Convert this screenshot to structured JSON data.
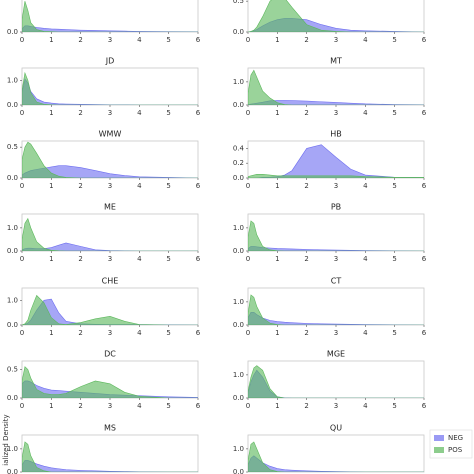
{
  "chart_data": [
    {
      "type": "area",
      "x": [
        0,
        0.1,
        0.2,
        0.3,
        0.5,
        0.75,
        1,
        1.25,
        1.5,
        2,
        2.5,
        3,
        3.5,
        4,
        5,
        6
      ],
      "xlim": [
        0,
        6
      ],
      "xticks": [
        0,
        1,
        2,
        3,
        4,
        5,
        6
      ],
      "ylim": [
        0,
        1.2
      ],
      "yticks": [
        {
          "value": 0,
          "label": "0.0"
        }
      ],
      "series": [
        {
          "name": "NEG",
          "color": "#6f6ff0",
          "values": [
            0.1,
            0.2,
            0.2,
            0.18,
            0.15,
            0.12,
            0.1,
            0.09,
            0.08,
            0.06,
            0.05,
            0.04,
            0.03,
            0.02,
            0.01,
            0.005
          ]
        },
        {
          "name": "POS",
          "color": "#5cb85c",
          "values": [
            0.4,
            1.0,
            0.7,
            0.3,
            0.08,
            0.02,
            0.01,
            0,
            0,
            0,
            0,
            0,
            0,
            0,
            0,
            0
          ]
        }
      ]
    },
    {
      "type": "area",
      "x": [
        0,
        0.1,
        0.2,
        0.3,
        0.5,
        0.75,
        1,
        1.25,
        1.5,
        2,
        2.5,
        3,
        3.5,
        4,
        5,
        6
      ],
      "xlim": [
        0,
        6
      ],
      "xticks": [
        0,
        1,
        2,
        3,
        4,
        5,
        6
      ],
      "ylim": [
        0,
        0.6
      ],
      "yticks": [
        {
          "value": 0,
          "label": "0.0"
        },
        {
          "value": 0.5,
          "label": "0.5"
        }
      ],
      "series": [
        {
          "name": "NEG",
          "color": "#6f6ff0",
          "values": [
            0,
            0.01,
            0.02,
            0.04,
            0.1,
            0.16,
            0.2,
            0.22,
            0.22,
            0.2,
            0.12,
            0.06,
            0.03,
            0.02,
            0.01,
            0
          ]
        },
        {
          "name": "POS",
          "color": "#5cb85c",
          "values": [
            0,
            0.01,
            0.03,
            0.08,
            0.25,
            0.5,
            0.6,
            0.55,
            0.4,
            0.12,
            0.03,
            0.01,
            0,
            0,
            0,
            0
          ]
        }
      ]
    },
    {
      "type": "area",
      "title": "JD",
      "x": [
        0,
        0.1,
        0.2,
        0.3,
        0.5,
        0.75,
        1,
        1.25,
        1.5,
        2,
        2.5,
        3,
        3.5,
        4,
        5,
        6
      ],
      "xlim": [
        0,
        6
      ],
      "xticks": [
        0,
        1,
        2,
        3,
        4,
        5,
        6
      ],
      "ylim": [
        0,
        1.5
      ],
      "yticks": [
        {
          "value": 0,
          "label": "0.0"
        },
        {
          "value": 1,
          "label": "1.0"
        }
      ],
      "series": [
        {
          "name": "NEG",
          "color": "#6f6ff0",
          "values": [
            0.5,
            1.05,
            0.9,
            0.55,
            0.25,
            0.12,
            0.08,
            0.05,
            0.04,
            0.03,
            0.02,
            0.01,
            0.01,
            0,
            0,
            0
          ]
        },
        {
          "name": "POS",
          "color": "#5cb85c",
          "values": [
            0.6,
            1.3,
            1.0,
            0.5,
            0.12,
            0.03,
            0.01,
            0,
            0,
            0,
            0,
            0,
            0,
            0,
            0,
            0
          ]
        }
      ]
    },
    {
      "type": "area",
      "title": "MT",
      "x": [
        0,
        0.1,
        0.2,
        0.3,
        0.5,
        0.75,
        1,
        1.25,
        1.5,
        2,
        2.5,
        3,
        3.5,
        4,
        5,
        6
      ],
      "xlim": [
        0,
        6
      ],
      "xticks": [
        0,
        1,
        2,
        3,
        4,
        5,
        6
      ],
      "ylim": [
        0,
        1.6
      ],
      "yticks": [
        {
          "value": 0,
          "label": "0.0"
        },
        {
          "value": 1,
          "label": "1.0"
        }
      ],
      "series": [
        {
          "name": "NEG",
          "color": "#6f6ff0",
          "values": [
            0.02,
            0.04,
            0.06,
            0.08,
            0.12,
            0.18,
            0.2,
            0.2,
            0.19,
            0.17,
            0.14,
            0.11,
            0.08,
            0.05,
            0.02,
            0.01
          ]
        },
        {
          "name": "POS",
          "color": "#5cb85c",
          "values": [
            0.5,
            1.3,
            1.5,
            1.2,
            0.6,
            0.3,
            0.1,
            0.02,
            0,
            0,
            0,
            0,
            0,
            0,
            0,
            0
          ]
        }
      ]
    },
    {
      "type": "area",
      "title": "WMW",
      "x": [
        0,
        0.1,
        0.2,
        0.3,
        0.5,
        0.75,
        1,
        1.25,
        1.5,
        2,
        2.5,
        3,
        3.5,
        4,
        5,
        6
      ],
      "xlim": [
        0,
        6
      ],
      "xticks": [
        0,
        1,
        2,
        3,
        4,
        5,
        6
      ],
      "ylim": [
        0,
        0.6
      ],
      "yticks": [
        {
          "value": 0,
          "label": "0.0"
        },
        {
          "value": 0.5,
          "label": "0.5"
        }
      ],
      "series": [
        {
          "name": "NEG",
          "color": "#6f6ff0",
          "values": [
            0.05,
            0.08,
            0.1,
            0.12,
            0.14,
            0.16,
            0.18,
            0.2,
            0.2,
            0.17,
            0.12,
            0.07,
            0.04,
            0.02,
            0.01,
            0
          ]
        },
        {
          "name": "POS",
          "color": "#5cb85c",
          "values": [
            0.3,
            0.5,
            0.58,
            0.55,
            0.4,
            0.2,
            0.08,
            0.03,
            0.01,
            0,
            0,
            0,
            0,
            0,
            0,
            0
          ]
        }
      ]
    },
    {
      "type": "area",
      "title": "HB",
      "x": [
        0,
        0.1,
        0.2,
        0.3,
        0.5,
        0.75,
        1,
        1.25,
        1.5,
        2,
        2.5,
        3,
        3.5,
        4,
        5,
        6
      ],
      "xlim": [
        0,
        6
      ],
      "xticks": [
        0,
        1,
        2,
        3,
        4,
        5,
        6
      ],
      "ylim": [
        0,
        0.5
      ],
      "yticks": [
        {
          "value": 0,
          "label": "0.0"
        },
        {
          "value": 0.2,
          "label": "0.2"
        },
        {
          "value": 0.4,
          "label": "0.4"
        }
      ],
      "series": [
        {
          "name": "NEG",
          "color": "#6f6ff0",
          "values": [
            0,
            0,
            0,
            0,
            0.01,
            0.01,
            0.02,
            0.04,
            0.1,
            0.4,
            0.45,
            0.28,
            0.12,
            0.04,
            0.01,
            0
          ]
        },
        {
          "name": "POS",
          "color": "#5cb85c",
          "values": [
            0.02,
            0.03,
            0.04,
            0.05,
            0.05,
            0.04,
            0.03,
            0.03,
            0.03,
            0.03,
            0.03,
            0.03,
            0.03,
            0.02,
            0.01,
            0.01
          ]
        }
      ]
    },
    {
      "type": "area",
      "title": "ME",
      "x": [
        0,
        0.1,
        0.2,
        0.3,
        0.5,
        0.75,
        1,
        1.25,
        1.5,
        2,
        2.5,
        3,
        3.5,
        4,
        5,
        6
      ],
      "xlim": [
        0,
        6
      ],
      "xticks": [
        0,
        1,
        2,
        3,
        4,
        5,
        6
      ],
      "ylim": [
        0,
        1.6
      ],
      "yticks": [
        {
          "value": 0,
          "label": "0.0"
        },
        {
          "value": 1,
          "label": "1.0"
        }
      ],
      "series": [
        {
          "name": "NEG",
          "color": "#6f6ff0",
          "values": [
            0.05,
            0.1,
            0.12,
            0.12,
            0.1,
            0.1,
            0.15,
            0.25,
            0.35,
            0.2,
            0.05,
            0.02,
            0.01,
            0,
            0,
            0
          ]
        },
        {
          "name": "POS",
          "color": "#5cb85c",
          "values": [
            0.5,
            1.2,
            1.4,
            1.0,
            0.4,
            0.12,
            0.03,
            0.01,
            0,
            0,
            0,
            0,
            0,
            0,
            0,
            0
          ]
        }
      ]
    },
    {
      "type": "area",
      "title": "PB",
      "x": [
        0,
        0.1,
        0.2,
        0.3,
        0.5,
        0.75,
        1,
        1.25,
        1.5,
        2,
        2.5,
        3,
        3.5,
        4,
        5,
        6
      ],
      "xlim": [
        0,
        6
      ],
      "xticks": [
        0,
        1,
        2,
        3,
        4,
        5,
        6
      ],
      "ylim": [
        0,
        1.6
      ],
      "yticks": [
        {
          "value": 0,
          "label": "0.0"
        },
        {
          "value": 1,
          "label": "1.0"
        }
      ],
      "series": [
        {
          "name": "NEG",
          "color": "#6f6ff0",
          "values": [
            0.1,
            0.2,
            0.2,
            0.18,
            0.15,
            0.13,
            0.11,
            0.1,
            0.09,
            0.07,
            0.05,
            0.04,
            0.03,
            0.02,
            0.01,
            0
          ]
        },
        {
          "name": "POS",
          "color": "#5cb85c",
          "values": [
            0.6,
            1.3,
            1.2,
            0.7,
            0.2,
            0.05,
            0.01,
            0,
            0,
            0,
            0,
            0,
            0,
            0,
            0,
            0
          ]
        }
      ]
    },
    {
      "type": "area",
      "title": "CHE",
      "x": [
        0,
        0.1,
        0.2,
        0.3,
        0.5,
        0.75,
        1,
        1.25,
        1.5,
        2,
        2.5,
        3,
        3.5,
        4,
        5,
        6
      ],
      "xlim": [
        0,
        6
      ],
      "xticks": [
        0,
        1,
        2,
        3,
        4,
        5,
        6
      ],
      "ylim": [
        0,
        1.5
      ],
      "yticks": [
        {
          "value": 0,
          "label": "0.0"
        },
        {
          "value": 1,
          "label": "1.0"
        }
      ],
      "series": [
        {
          "name": "NEG",
          "color": "#6f6ff0",
          "values": [
            0,
            0.02,
            0.08,
            0.2,
            0.6,
            1.0,
            1.05,
            0.5,
            0.15,
            0.05,
            0.03,
            0.02,
            0.02,
            0.02,
            0.01,
            0
          ]
        },
        {
          "name": "POS",
          "color": "#5cb85c",
          "values": [
            0,
            0.05,
            0.2,
            0.6,
            1.2,
            0.9,
            0.3,
            0.05,
            0.02,
            0.1,
            0.25,
            0.35,
            0.15,
            0.02,
            0,
            0
          ]
        }
      ]
    },
    {
      "type": "area",
      "title": "CT",
      "x": [
        0,
        0.1,
        0.2,
        0.3,
        0.5,
        0.75,
        1,
        1.25,
        1.5,
        2,
        2.5,
        3,
        3.5,
        4,
        5,
        6
      ],
      "xlim": [
        0,
        6
      ],
      "xticks": [
        0,
        1,
        2,
        3,
        4,
        5,
        6
      ],
      "ylim": [
        0,
        1.6
      ],
      "yticks": [
        {
          "value": 0,
          "label": "0.0"
        },
        {
          "value": 1,
          "label": "1.0"
        }
      ],
      "series": [
        {
          "name": "NEG",
          "color": "#6f6ff0",
          "values": [
            0.3,
            0.55,
            0.55,
            0.45,
            0.3,
            0.2,
            0.15,
            0.12,
            0.1,
            0.07,
            0.05,
            0.04,
            0.03,
            0.02,
            0.01,
            0
          ]
        },
        {
          "name": "POS",
          "color": "#5cb85c",
          "values": [
            0.5,
            1.3,
            1.2,
            0.8,
            0.3,
            0.08,
            0.02,
            0,
            0,
            0,
            0,
            0,
            0,
            0,
            0,
            0
          ]
        }
      ]
    },
    {
      "type": "area",
      "title": "DC",
      "x": [
        0,
        0.1,
        0.2,
        0.3,
        0.5,
        0.75,
        1,
        1.25,
        1.5,
        2,
        2.5,
        3,
        3.5,
        4,
        5,
        6
      ],
      "xlim": [
        0,
        6
      ],
      "xticks": [
        0,
        1,
        2,
        3,
        4,
        5,
        6
      ],
      "ylim": [
        0,
        0.65
      ],
      "yticks": [
        {
          "value": 0,
          "label": "0.0"
        },
        {
          "value": 0.5,
          "label": "0.5"
        }
      ],
      "series": [
        {
          "name": "NEG",
          "color": "#6f6ff0",
          "values": [
            0.25,
            0.3,
            0.3,
            0.28,
            0.22,
            0.17,
            0.14,
            0.13,
            0.12,
            0.1,
            0.08,
            0.06,
            0.05,
            0.04,
            0.02,
            0.01
          ]
        },
        {
          "name": "POS",
          "color": "#5cb85c",
          "values": [
            0.3,
            0.55,
            0.5,
            0.35,
            0.15,
            0.08,
            0.06,
            0.06,
            0.08,
            0.2,
            0.3,
            0.25,
            0.1,
            0.03,
            0,
            0
          ]
        }
      ]
    },
    {
      "type": "area",
      "title": "MGE",
      "x": [
        0,
        0.1,
        0.2,
        0.3,
        0.5,
        0.75,
        1,
        1.25,
        1.5,
        2,
        2.5,
        3,
        3.5,
        4,
        5,
        6
      ],
      "xlim": [
        0,
        6
      ],
      "xticks": [
        0,
        1,
        2,
        3,
        4,
        5,
        6
      ],
      "ylim": [
        0,
        1.6
      ],
      "yticks": [
        {
          "value": 0,
          "label": "0.0"
        },
        {
          "value": 1,
          "label": "1.0"
        }
      ],
      "series": [
        {
          "name": "NEG",
          "color": "#6f6ff0",
          "values": [
            0.2,
            0.7,
            1.0,
            1.2,
            0.9,
            0.3,
            0.05,
            0.01,
            0,
            0,
            0,
            0,
            0,
            0,
            0,
            0
          ]
        },
        {
          "name": "POS",
          "color": "#5cb85c",
          "values": [
            0.3,
            0.9,
            1.3,
            1.4,
            1.2,
            0.4,
            0.05,
            0,
            0,
            0,
            0,
            0,
            0,
            0,
            0,
            0
          ]
        }
      ]
    },
    {
      "type": "area",
      "title": "MS",
      "x": [
        0,
        0.1,
        0.2,
        0.3,
        0.5,
        0.75,
        1,
        1.25,
        1.5,
        2,
        2.5,
        3,
        3.5,
        4,
        5,
        6
      ],
      "xlim": [
        0,
        6
      ],
      "ylim": [
        0,
        1.6
      ],
      "yticks": [
        {
          "value": 0,
          "label": "0.0"
        },
        {
          "value": 1,
          "label": "1.0"
        }
      ],
      "series": [
        {
          "name": "NEG",
          "color": "#6f6ff0",
          "values": [
            0.3,
            0.5,
            0.5,
            0.45,
            0.35,
            0.25,
            0.18,
            0.14,
            0.1,
            0.07,
            0.05,
            0.03,
            0.02,
            0.01,
            0,
            0
          ]
        },
        {
          "name": "POS",
          "color": "#5cb85c",
          "values": [
            0.6,
            1.3,
            1.2,
            0.7,
            0.2,
            0.05,
            0,
            0,
            0,
            0,
            0,
            0,
            0,
            0,
            0,
            0
          ]
        }
      ]
    },
    {
      "type": "area",
      "title": "QU",
      "x": [
        0,
        0.1,
        0.2,
        0.3,
        0.5,
        0.75,
        1,
        1.25,
        1.5,
        2,
        2.5,
        3,
        3.5,
        4,
        5,
        6
      ],
      "xlim": [
        0,
        6
      ],
      "ylim": [
        0,
        1.6
      ],
      "yticks": [
        {
          "value": 0,
          "label": "0.0"
        },
        {
          "value": 1,
          "label": "1.0"
        }
      ],
      "series": [
        {
          "name": "NEG",
          "color": "#6f6ff0",
          "values": [
            0.3,
            0.6,
            0.7,
            0.6,
            0.4,
            0.25,
            0.15,
            0.1,
            0.08,
            0.05,
            0.03,
            0.02,
            0.01,
            0,
            0,
            0
          ]
        },
        {
          "name": "POS",
          "color": "#5cb85c",
          "values": [
            0.5,
            1.2,
            1.3,
            1.0,
            0.4,
            0.1,
            0.02,
            0,
            0,
            0,
            0,
            0,
            0,
            0,
            0,
            0
          ]
        }
      ]
    }
  ],
  "ylabel": "ialized Density"
}
